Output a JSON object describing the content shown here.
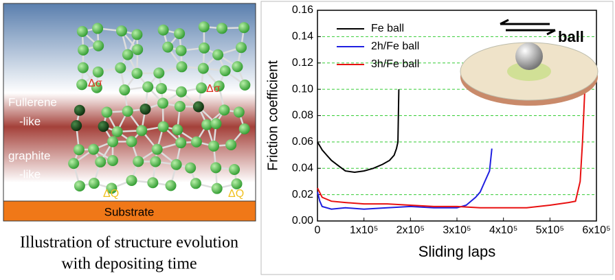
{
  "illustration": {
    "labels": {
      "fullerene": "Fullerene",
      "fullerene_suffix": "-like",
      "graphite": "graphite",
      "graphite_suffix": "-like",
      "substrate": "Substrate",
      "delta_sigma_left": "Δσ",
      "delta_sigma_right": "Δσ",
      "delta_q_left": "ΔQ",
      "delta_q_right": "ΔQ"
    },
    "caption": [
      "Illustration of structure evolution",
      "with depositing time"
    ]
  },
  "chart_data": {
    "type": "line",
    "x_label": "Sliding laps",
    "y_label": "Friction coefficient",
    "inset_label": "ball",
    "xlim": [
      0,
      600000
    ],
    "ylim": [
      0,
      0.16
    ],
    "xticks": [
      0,
      {
        "value": 100000,
        "label": "1x10⁵"
      },
      {
        "value": 200000,
        "label": "2x10⁵"
      },
      {
        "value": 300000,
        "label": "3x10⁵"
      },
      {
        "value": 400000,
        "label": "4x10⁵"
      },
      {
        "value": 500000,
        "label": "5x10⁵"
      },
      {
        "value": 600000,
        "label": "6x10⁵"
      }
    ],
    "yticks": [
      {
        "value": 0,
        "label": "0.00"
      },
      {
        "value": 0.02,
        "label": "0.02"
      },
      {
        "value": 0.04,
        "label": "0.04"
      },
      {
        "value": 0.06,
        "label": "0.06"
      },
      {
        "value": 0.08,
        "label": "0.08"
      },
      {
        "value": 0.1,
        "label": "0.10"
      },
      {
        "value": 0.12,
        "label": "0.12"
      },
      {
        "value": 0.14,
        "label": "0.14"
      },
      {
        "value": 0.16,
        "label": "0.16"
      }
    ],
    "grid": true,
    "grid_color": "#33cc33",
    "legend": "upper left",
    "series": [
      {
        "name": "Fe ball",
        "color": "#000000",
        "x": [
          0,
          10000,
          20000,
          30000,
          45000,
          60000,
          80000,
          100000,
          120000,
          140000,
          155000,
          165000,
          170000,
          173000,
          175000
        ],
        "values": [
          0.06,
          0.054,
          0.05,
          0.046,
          0.042,
          0.038,
          0.037,
          0.038,
          0.04,
          0.043,
          0.046,
          0.05,
          0.055,
          0.06,
          0.1
        ]
      },
      {
        "name": "2h/Fe ball",
        "color": "#1f1fe0",
        "x": [
          0,
          5000,
          10000,
          30000,
          60000,
          100000,
          150000,
          200000,
          250000,
          300000,
          320000,
          340000,
          350000,
          360000,
          370000,
          375000
        ],
        "values": [
          0.022,
          0.015,
          0.011,
          0.009,
          0.01,
          0.009,
          0.01,
          0.011,
          0.01,
          0.01,
          0.012,
          0.018,
          0.022,
          0.03,
          0.038,
          0.055
        ]
      },
      {
        "name": "3h/Fe ball",
        "color": "#e81010",
        "x": [
          0,
          10000,
          30000,
          60000,
          100000,
          150000,
          200000,
          250000,
          300000,
          350000,
          400000,
          450000,
          500000,
          540000,
          555000,
          565000,
          570000,
          575000
        ],
        "values": [
          0.025,
          0.018,
          0.015,
          0.014,
          0.013,
          0.013,
          0.012,
          0.011,
          0.011,
          0.01,
          0.01,
          0.01,
          0.012,
          0.014,
          0.015,
          0.03,
          0.06,
          0.1
        ]
      }
    ]
  }
}
